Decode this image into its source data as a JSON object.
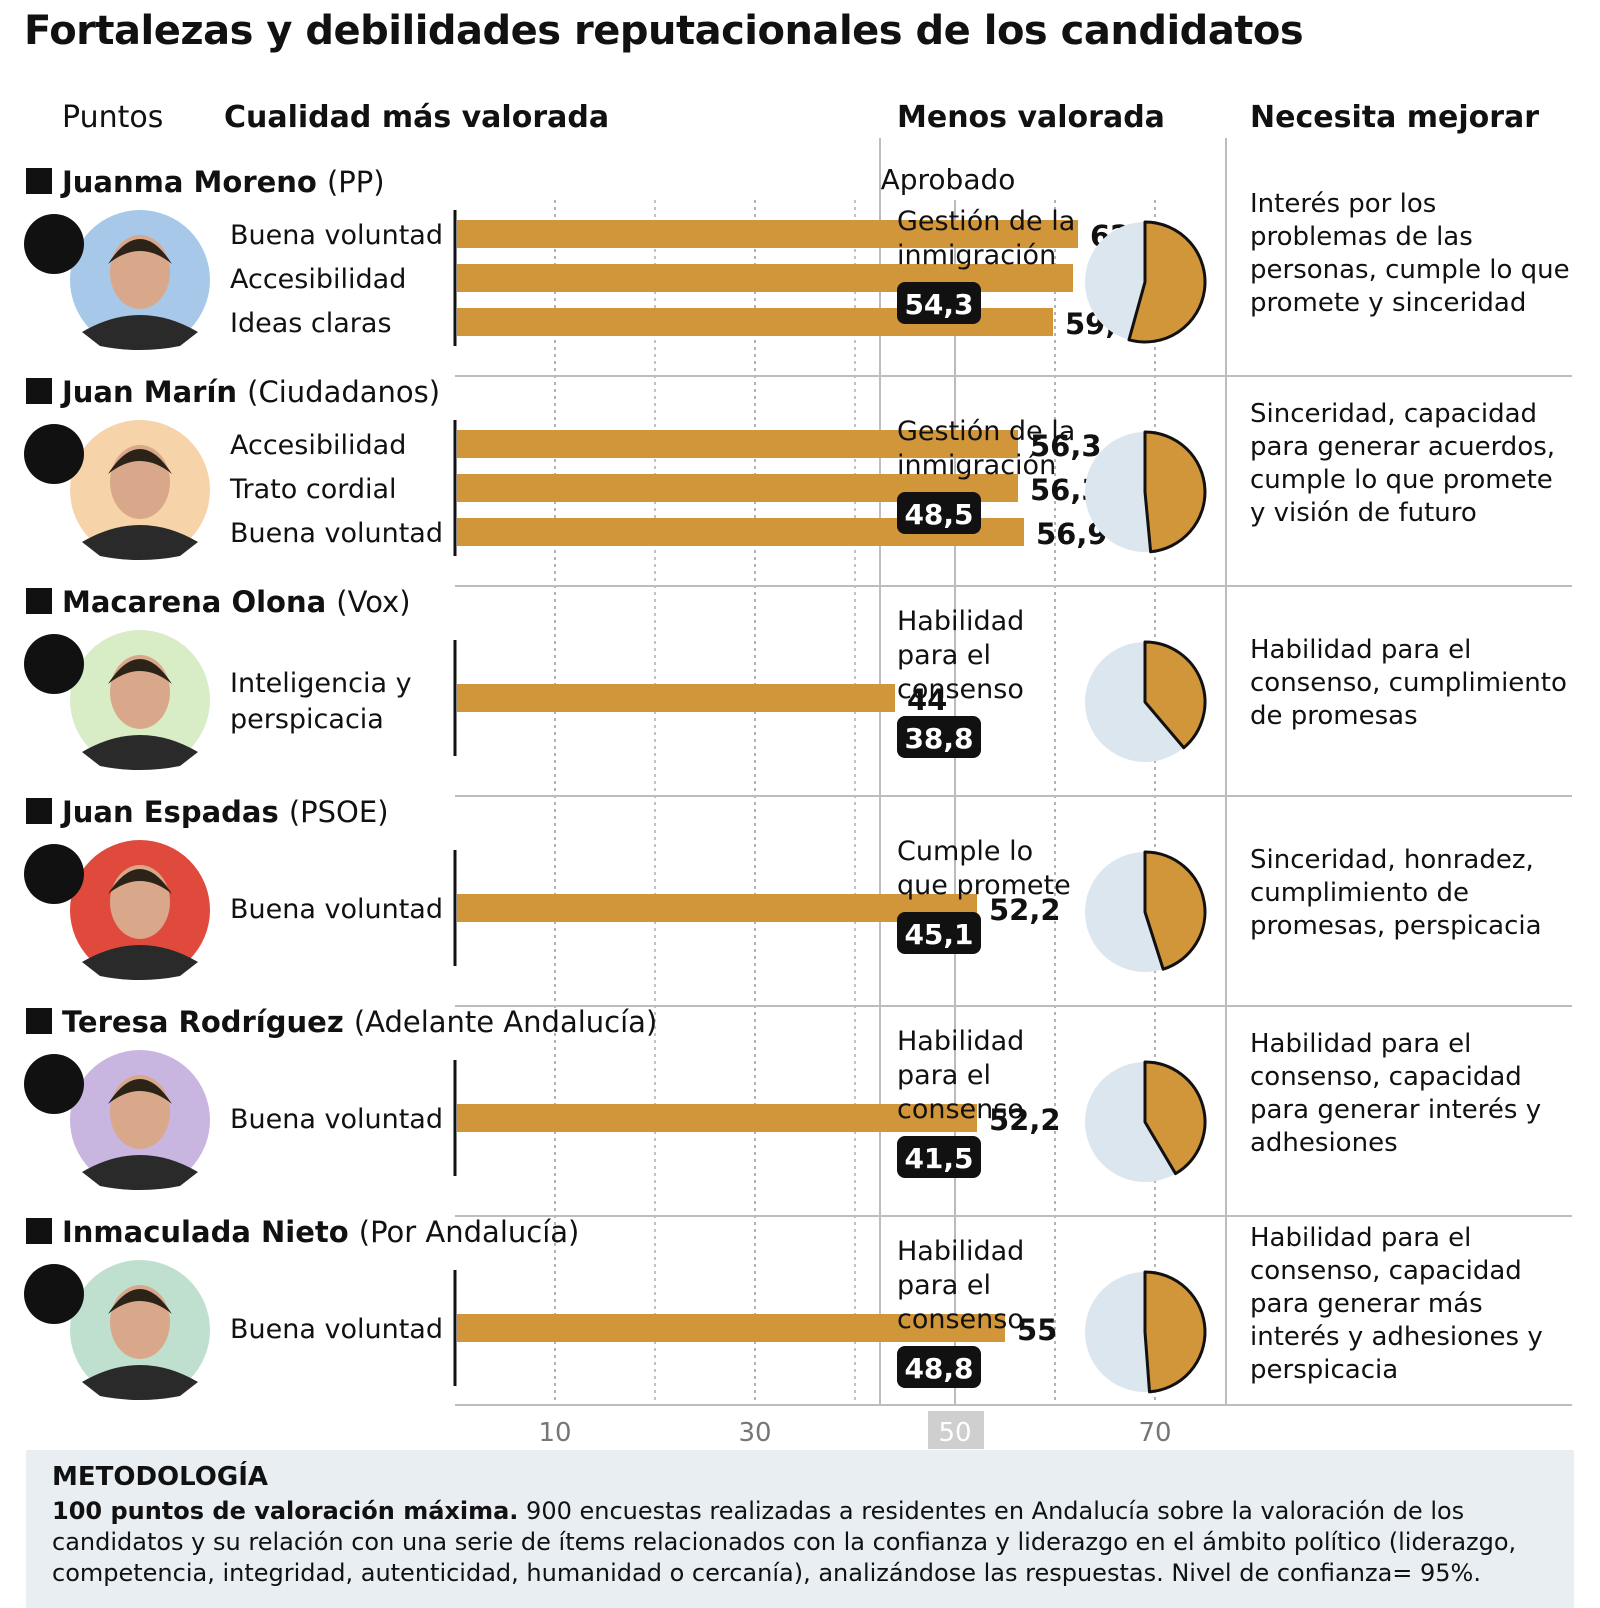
{
  "title": "Fortalezas y debilidades reputacionales de los candidatos",
  "headers": {
    "puntos": "Puntos",
    "cualidad": "Cualidad más valorada",
    "menos": "Menos valorada",
    "necesita": "Necesita mejorar"
  },
  "aprobado_label": "Aprobado",
  "methodology": {
    "title": "METODOLOGÍA",
    "lead": "100 puntos de valoración máxima.",
    "body": " 900 encuestas realizadas a residentes en Andalucía sobre la valoración de los candidatos y su relación con una serie de ítems relacionados con la confianza y liderazgo en el ámbito político (liderazgo, competencia, integridad, autenticidad, humanidad o cercanía), analizándose las respuestas. Nivel de confianza= 95%."
  },
  "colors": {
    "bar": "#d1953a",
    "pie_bg": "#dce6ef",
    "badge": "#111111",
    "grid": "#9a9a9a",
    "aprobado_band": "#cfcfcf",
    "photo_bg": [
      "#a8c8ea",
      "#f6d3a8",
      "#d8ecc6",
      "#e04a3c",
      "#c9b6e0",
      "#bfe0cf"
    ]
  },
  "chart_data": {
    "type": "bar",
    "title": "Fortalezas y debilidades reputacionales de los candidatos",
    "xlabel": "Puntos",
    "xlim": [
      0,
      80
    ],
    "xticks": [
      10,
      30,
      50,
      70
    ],
    "approval_threshold": 50,
    "candidates": [
      {
        "name": "Juanma Moreno",
        "party": "(PP)",
        "party_icon": "pp-logo-icon",
        "strengths": [
          {
            "label": "Buena voluntad",
            "value": 62.3,
            "display": "62,3"
          },
          {
            "label": "Accesibilidad",
            "value": 61.8,
            "display": "61,8"
          },
          {
            "label": "Ideas claras",
            "value": 59.8,
            "display": "59,8"
          }
        ],
        "weakest": {
          "label": [
            "Gestión de la",
            "inmigración"
          ],
          "value": 54.3,
          "display": "54,3"
        },
        "improve": [
          "Interés por los",
          "problemas de las",
          "personas, cumple lo que",
          "promete y sinceridad"
        ]
      },
      {
        "name": "Juan Marín",
        "party": "(Ciudadanos)",
        "party_icon": "cs-logo-icon",
        "strengths": [
          {
            "label": "Accesibilidad",
            "value": 56.3,
            "display": "56,3"
          },
          {
            "label": "Trato cordial",
            "value": 56.3,
            "display": "56,3"
          },
          {
            "label": "Buena voluntad",
            "value": 56.9,
            "display": "56,9"
          }
        ],
        "weakest": {
          "label": [
            "Gestión de la",
            "inmigración"
          ],
          "value": 48.5,
          "display": "48,5"
        },
        "improve": [
          "Sinceridad, capacidad",
          "para generar acuerdos,",
          "cumple lo que promete",
          "y visión de futuro"
        ]
      },
      {
        "name": "Macarena Olona",
        "party": "(Vox)",
        "party_icon": "vox-logo-icon",
        "strengths": [
          {
            "label": [
              "Inteligencia y",
              "perspicacia"
            ],
            "value": 44,
            "display": "44"
          }
        ],
        "weakest": {
          "label": [
            "Habilidad",
            "para el",
            "consenso"
          ],
          "value": 38.8,
          "display": "38,8"
        },
        "improve": [
          "Habilidad para el",
          "consenso, cumplimiento",
          "de promesas"
        ]
      },
      {
        "name": "Juan Espadas",
        "party": "(PSOE)",
        "party_icon": "psoe-logo-icon",
        "strengths": [
          {
            "label": "Buena voluntad",
            "value": 52.2,
            "display": "52,2"
          }
        ],
        "weakest": {
          "label": [
            "Cumple lo",
            "que promete"
          ],
          "value": 45.1,
          "display": "45,1"
        },
        "improve": [
          "Sinceridad, honradez,",
          "cumplimiento de",
          "promesas, perspicacia"
        ]
      },
      {
        "name": "Teresa Rodríguez",
        "party": "(Adelante Andalucía)",
        "party_icon": "adelante-logo-icon",
        "strengths": [
          {
            "label": "Buena voluntad",
            "value": 52.2,
            "display": "52,2"
          }
        ],
        "weakest": {
          "label": [
            "Habilidad",
            "para el",
            "consenso"
          ],
          "value": 41.5,
          "display": "41,5"
        },
        "improve": [
          "Habilidad para el",
          "consenso, capacidad",
          "para generar interés y",
          "adhesiones"
        ]
      },
      {
        "name": "Inmaculada Nieto",
        "party": "(Por Andalucía)",
        "party_icon": "porandalucia-logo-icon",
        "strengths": [
          {
            "label": "Buena voluntad",
            "value": 55,
            "display": "55"
          }
        ],
        "weakest": {
          "label": [
            "Habilidad",
            "para el",
            "consenso"
          ],
          "value": 48.8,
          "display": "48,8"
        },
        "improve": [
          "Habilidad para el",
          "consenso, capacidad",
          "para generar más",
          "interés y adhesiones y",
          "perspicacia"
        ]
      }
    ]
  }
}
